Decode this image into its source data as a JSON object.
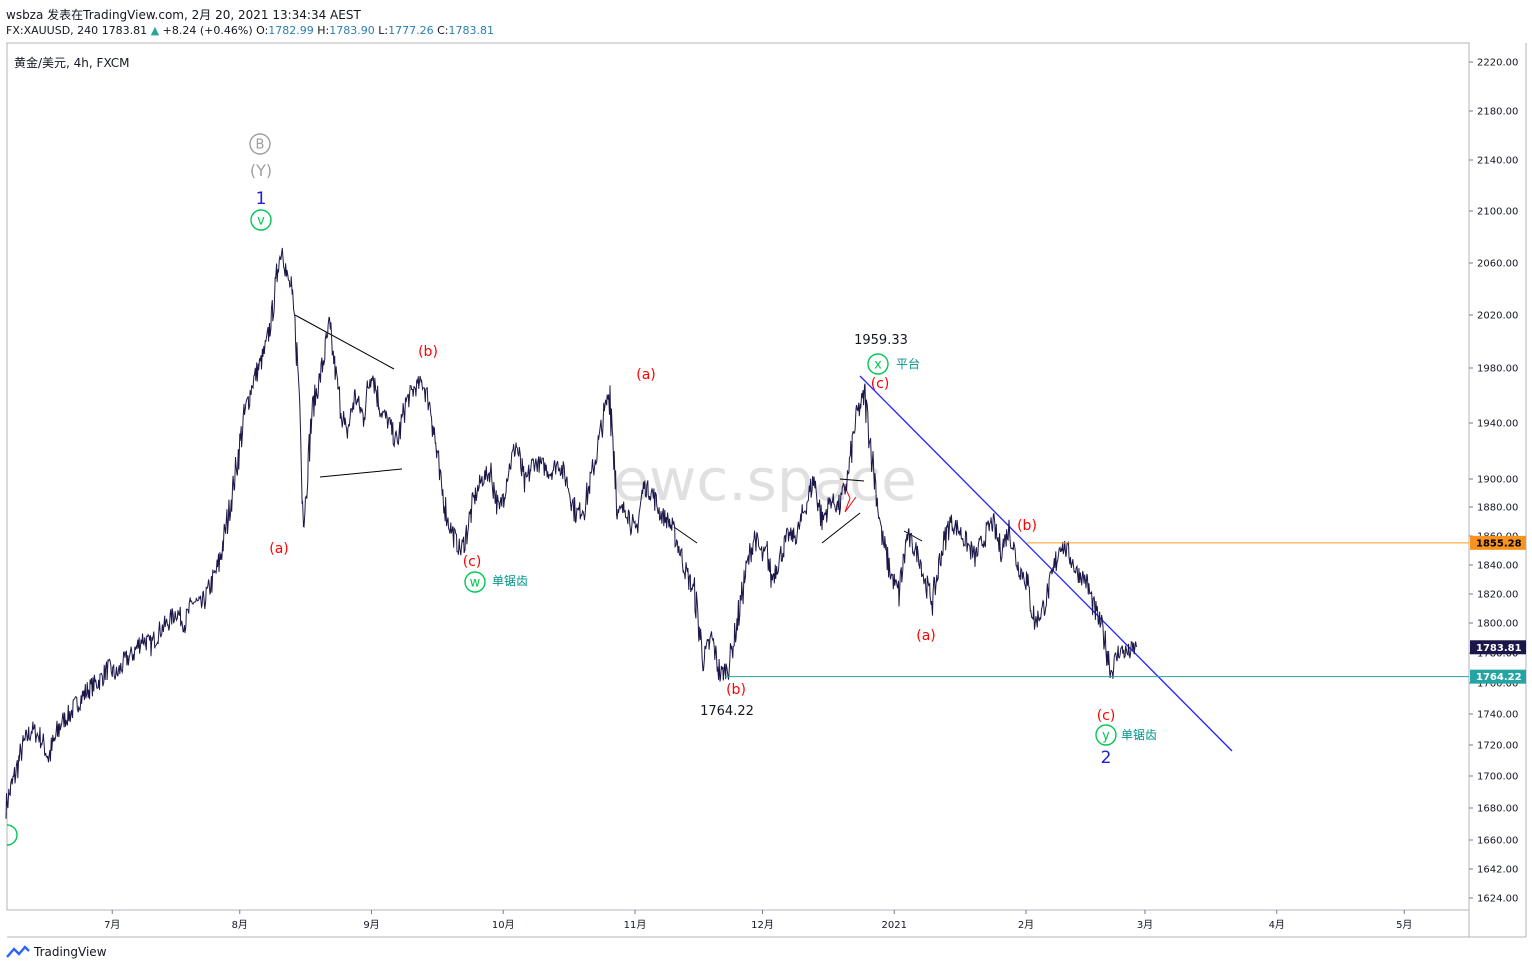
{
  "header": {
    "line1": "wsbza 发表在TradingView.com, 2月 20, 2021 13:34:34 AEST",
    "symbol": "FX:XAUUSD, 240",
    "last": "1783.81",
    "change": "+8.24 (+0.46%)",
    "o_label": "O:",
    "o": "1782.99",
    "h_label": "H:",
    "h": "1783.90",
    "l_label": "L:",
    "l": "1777.26",
    "c_label": "C:",
    "c": "1783.81"
  },
  "symbol_label": "黄金/美元, 4h, FXCM",
  "watermark": "ewc.space",
  "footer": {
    "brand": "TradingView"
  },
  "colors": {
    "price_line": "#1b1748",
    "wave_red": "#ff0000",
    "wave_green": "#00c853",
    "wave_blue": "#1e1ed8",
    "trendline": "#2222ff",
    "orange_line": "#f59b23",
    "teal_line": "#26a3a3",
    "last_price_bg": "#1b1748"
  },
  "chart_data": {
    "type": "line",
    "title": "黄金/美元, 4h, FXCM",
    "y_axis": {
      "ticks": [
        2220,
        2180,
        2140,
        2100,
        2060,
        2020,
        1980,
        1940,
        1900,
        1880,
        1860,
        1840,
        1820,
        1800,
        1780,
        1760,
        1740,
        1720,
        1700,
        1680,
        1660,
        1642,
        1624
      ],
      "tick_labels": [
        "2220.00",
        "2180.00",
        "2140.00",
        "2100.00",
        "2060.00",
        "2020.00",
        "1980.00",
        "1940.00",
        "1900.00",
        "1880.00",
        "1860.00",
        "1840.00",
        "1820.00",
        "1800.00",
        "1780.00",
        "1760.00",
        "1740.00",
        "1720.00",
        "1700.00",
        "1680.00",
        "1660.00",
        "1642.00",
        "1624.00"
      ]
    },
    "x_axis": {
      "tick_labels": [
        "7月",
        "8月",
        "9月",
        "10月",
        "11月",
        "12月",
        "2021",
        "2月",
        "3月",
        "4月",
        "5月"
      ],
      "ticks": [
        25,
        55,
        86,
        117,
        148,
        178,
        209,
        240,
        268,
        299,
        329
      ]
    },
    "series": [
      {
        "x": [
          0,
          2,
          4,
          6,
          8,
          10,
          13,
          15,
          17,
          19,
          22,
          24,
          26,
          28,
          30,
          32,
          34,
          36,
          38,
          40,
          42,
          44,
          46,
          48,
          50,
          52,
          54,
          56,
          58,
          60,
          61,
          62,
          63,
          64,
          65,
          66,
          67,
          68,
          69,
          70,
          71,
          72,
          74,
          76,
          78,
          80,
          82,
          84,
          86,
          88,
          90,
          92,
          94,
          96,
          98,
          100,
          102,
          104,
          106,
          107,
          108,
          110,
          112,
          114,
          116,
          118,
          120,
          122,
          124,
          126,
          128,
          130,
          132,
          134,
          136,
          138,
          140,
          142,
          144,
          146,
          148,
          150,
          152,
          154,
          156,
          158,
          160,
          162,
          164,
          166,
          168,
          170,
          172,
          174,
          176,
          178,
          179,
          180,
          182,
          184,
          186,
          188,
          190,
          192,
          194,
          196,
          198,
          200,
          202,
          204,
          206,
          208,
          210,
          212,
          214,
          215,
          216,
          218,
          220,
          222,
          224,
          226,
          228,
          230,
          232,
          234,
          236,
          238,
          240,
          242,
          244,
          246,
          248,
          250,
          252,
          254,
          256,
          258,
          260,
          262,
          264,
          266
        ],
        "values": [
          1682,
          1700,
          1720,
          1730,
          1725,
          1712,
          1735,
          1740,
          1748,
          1755,
          1762,
          1770,
          1765,
          1775,
          1780,
          1790,
          1785,
          1795,
          1800,
          1808,
          1800,
          1815,
          1812,
          1825,
          1840,
          1870,
          1905,
          1945,
          1970,
          1985,
          1995,
          2010,
          2030,
          2060,
          2072,
          2050,
          2040,
          2010,
          1960,
          1870,
          1910,
          1950,
          1975,
          2010,
          1965,
          1930,
          1960,
          1945,
          1980,
          1950,
          1940,
          1925,
          1955,
          1965,
          1970,
          1950,
          1900,
          1870,
          1855,
          1850,
          1858,
          1885,
          1900,
          1905,
          1875,
          1905,
          1925,
          1895,
          1912,
          1910,
          1905,
          1912,
          1898,
          1875,
          1880,
          1905,
          1935,
          1965,
          1875,
          1880,
          1860,
          1895,
          1890,
          1875,
          1870,
          1855,
          1835,
          1820,
          1775,
          1790,
          1765,
          1772,
          1800,
          1835,
          1860,
          1845,
          1850,
          1830,
          1845,
          1860,
          1860,
          1880,
          1900,
          1870,
          1885,
          1880,
          1900,
          1945,
          1960,
          1910,
          1860,
          1835,
          1820,
          1860,
          1850,
          1845,
          1830,
          1815,
          1848,
          1870,
          1865,
          1855,
          1845,
          1858,
          1870,
          1850,
          1865,
          1840,
          1830,
          1800,
          1810,
          1830,
          1855,
          1848,
          1835,
          1830,
          1810,
          1795,
          1768,
          1782,
          1780,
          1784
        ]
      }
    ],
    "annotations": {
      "price_labels": [
        "1959.33",
        "1764.22"
      ],
      "levels": [
        {
          "value": 1855.28,
          "label": "1855.28"
        },
        {
          "value": 1783.81,
          "label": "1783.81"
        },
        {
          "value": 1764.22,
          "label": "1764.22"
        }
      ],
      "waves": [
        {
          "text": "B",
          "x": 65,
          "y": 2150
        },
        {
          "text": "(Y)",
          "x": 65,
          "y": 2130
        },
        {
          "text": "1",
          "x": 65,
          "y": 2110
        },
        {
          "text": "v",
          "x": 65,
          "y": 2092
        },
        {
          "text": "(a)",
          "x": 69,
          "y": 1848
        },
        {
          "text": "(b)",
          "x": 107,
          "y": 1990
        },
        {
          "text": "(c)",
          "x": 117,
          "y": 1843
        },
        {
          "text": "w",
          "x": 117,
          "y": 1825
        },
        {
          "text": "单锯齿",
          "x": 126,
          "y": 1825
        },
        {
          "text": "(a)",
          "x": 161,
          "y": 1975
        },
        {
          "text": "(b)",
          "x": 182,
          "y": 1753
        },
        {
          "text": "x",
          "x": 219,
          "y": 1982
        },
        {
          "text": "平台",
          "x": 227,
          "y": 1982
        },
        {
          "text": "(c)",
          "x": 219,
          "y": 1970
        },
        {
          "text": "(a)",
          "x": 231,
          "y": 1805
        },
        {
          "text": "(b)",
          "x": 256,
          "y": 1864
        },
        {
          "text": "(c)",
          "x": 275,
          "y": 1735
        },
        {
          "text": "y",
          "x": 276,
          "y": 1723
        },
        {
          "text": "单锯齿",
          "x": 285,
          "y": 1723
        },
        {
          "text": "2",
          "x": 276,
          "y": 1710
        }
      ]
    }
  }
}
